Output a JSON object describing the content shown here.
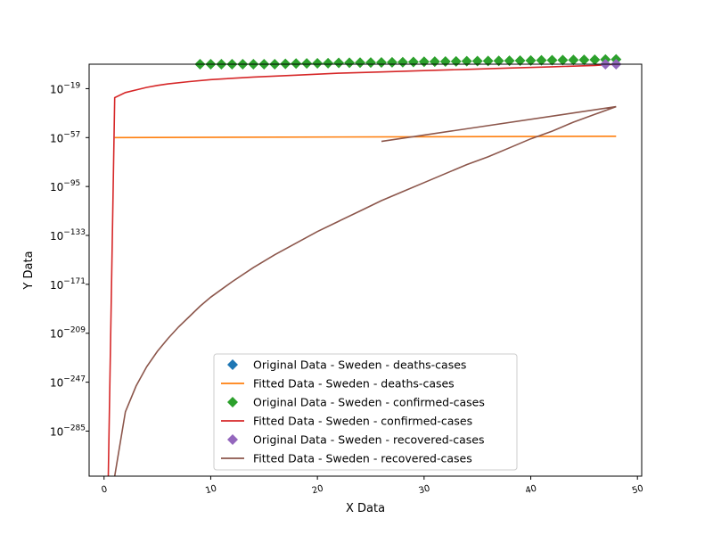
{
  "chart_data": {
    "type": "line",
    "title": "",
    "xlabel": "X Data",
    "ylabel": "Y Data",
    "xlim": [
      -1.4,
      50.4
    ],
    "ylim_log10": [
      -320,
      0
    ],
    "yscale": "log",
    "x_ticks": [
      0,
      10,
      20,
      30,
      40,
      50
    ],
    "y_ticks": [
      {
        "exp": -19,
        "label": "10",
        "sup": "−19"
      },
      {
        "exp": -57,
        "label": "10",
        "sup": "−57"
      },
      {
        "exp": -95,
        "label": "10",
        "sup": "−95"
      },
      {
        "exp": -133,
        "label": "10",
        "sup": "−133"
      },
      {
        "exp": -171,
        "label": "10",
        "sup": "−171"
      },
      {
        "exp": -209,
        "label": "10",
        "sup": "−209"
      },
      {
        "exp": -247,
        "label": "10",
        "sup": "−247"
      },
      {
        "exp": -285,
        "label": "10",
        "sup": "−285"
      }
    ],
    "grid": false,
    "legend_position": "lower center",
    "series": [
      {
        "name": "Original Data - Sweden - deaths-cases",
        "kind": "markers",
        "marker": "diamond",
        "color": "#1f77b4",
        "points": []
      },
      {
        "name": "Fitted Data - Sweden - deaths-cases",
        "kind": "line",
        "color": "#ff7f0e",
        "points": [
          [
            1,
            -57
          ],
          [
            48,
            -56
          ]
        ]
      },
      {
        "name": "Original Data - Sweden - confirmed-cases",
        "kind": "markers",
        "marker": "diamond",
        "color": "#2ca02c",
        "points": [
          [
            9,
            0
          ],
          [
            10,
            0
          ],
          [
            11,
            0
          ],
          [
            12,
            0
          ],
          [
            13,
            0
          ],
          [
            14,
            0
          ],
          [
            15,
            0
          ],
          [
            16,
            0
          ],
          [
            17,
            0.3
          ],
          [
            18,
            0.5
          ],
          [
            19,
            0.6
          ],
          [
            20,
            0.7
          ],
          [
            21,
            0.8
          ],
          [
            22,
            1.0
          ],
          [
            23,
            1.1
          ],
          [
            24,
            1.2
          ],
          [
            25,
            1.3
          ],
          [
            26,
            1.4
          ],
          [
            27,
            1.5
          ],
          [
            28,
            1.6
          ],
          [
            29,
            1.7
          ],
          [
            30,
            1.9
          ],
          [
            31,
            2.0
          ],
          [
            32,
            2.1
          ],
          [
            33,
            2.2
          ],
          [
            34,
            2.3
          ],
          [
            35,
            2.4
          ],
          [
            36,
            2.5
          ],
          [
            37,
            2.6
          ],
          [
            38,
            2.7
          ],
          [
            39,
            2.8
          ],
          [
            40,
            2.9
          ],
          [
            41,
            3.0
          ],
          [
            42,
            3.1
          ],
          [
            43,
            3.2
          ],
          [
            44,
            3.3
          ],
          [
            45,
            3.4
          ],
          [
            46,
            3.5
          ],
          [
            47,
            3.6
          ],
          [
            48,
            3.7
          ]
        ]
      },
      {
        "name": "Fitted Data - Sweden - confirmed-cases",
        "kind": "line",
        "color": "#d62728",
        "points": [
          [
            0.4,
            -320
          ],
          [
            1,
            -26
          ],
          [
            2,
            -22
          ],
          [
            3,
            -20
          ],
          [
            4,
            -18
          ],
          [
            5,
            -16.5
          ],
          [
            6,
            -15.3
          ],
          [
            8,
            -13.5
          ],
          [
            10,
            -12
          ],
          [
            14,
            -10
          ],
          [
            18,
            -8.5
          ],
          [
            22,
            -7
          ],
          [
            26,
            -6
          ],
          [
            30,
            -5
          ],
          [
            34,
            -4
          ],
          [
            38,
            -3
          ],
          [
            42,
            -2
          ],
          [
            46,
            -1
          ],
          [
            48,
            0
          ]
        ]
      },
      {
        "name": "Original Data - Sweden - recovered-cases",
        "kind": "markers",
        "marker": "diamond",
        "color": "#9467bd",
        "points": [
          [
            47,
            0
          ],
          [
            48,
            0
          ]
        ]
      },
      {
        "name": "Fitted Data - Sweden - recovered-cases",
        "kind": "line",
        "color": "#8c564b",
        "points": [
          [
            1,
            -320
          ],
          [
            1.3,
            -305
          ],
          [
            2,
            -270
          ],
          [
            3,
            -250
          ],
          [
            4,
            -235
          ],
          [
            5,
            -223
          ],
          [
            6,
            -213
          ],
          [
            7,
            -204
          ],
          [
            8,
            -196
          ],
          [
            9,
            -188
          ],
          [
            10,
            -181
          ],
          [
            12,
            -169
          ],
          [
            14,
            -158
          ],
          [
            16,
            -148
          ],
          [
            18,
            -139
          ],
          [
            20,
            -130
          ],
          [
            22,
            -122
          ],
          [
            24,
            -114
          ],
          [
            26,
            -106
          ],
          [
            28,
            -99
          ],
          [
            30,
            -92
          ],
          [
            32,
            -85
          ],
          [
            34,
            -78
          ],
          [
            36,
            -72
          ],
          [
            38,
            -65
          ],
          [
            40,
            -58
          ],
          [
            42,
            -52
          ],
          [
            44,
            -45
          ],
          [
            46,
            -39
          ],
          [
            48,
            -33
          ],
          [
            26,
            -60
          ],
          [
            30,
            -50
          ],
          [
            34,
            -42
          ],
          [
            38,
            -34
          ],
          [
            42,
            -26
          ],
          [
            46,
            -18
          ],
          [
            48,
            -6
          ]
        ]
      }
    ]
  }
}
